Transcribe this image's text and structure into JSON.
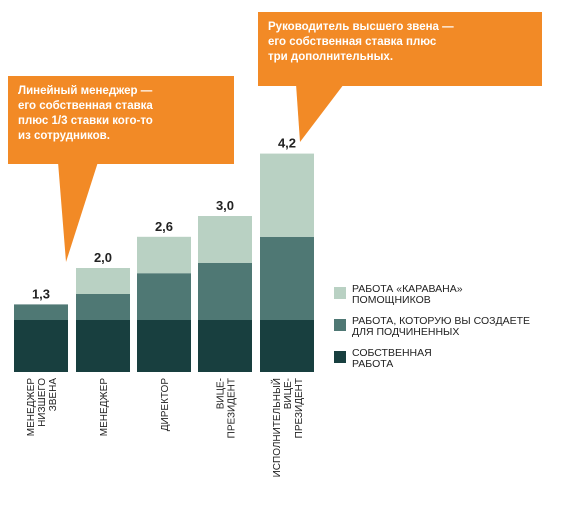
{
  "colors": {
    "own": "#183f3f",
    "subordinates": "#4f7874",
    "caravan": "#b9d1c3",
    "callout": "#f28a26"
  },
  "callouts": {
    "first": "Линейный менеджер —\nего собственная ставка\nплюс 1/3 ставки кого-то\nиз сотрудников.",
    "second": "Руководитель высшего звена —\nего собственная ставка плюс\nтри дополнительных."
  },
  "chart_data": {
    "type": "bar",
    "stacked": true,
    "categories": [
      "МЕНЕДЖЕР\nНИЗШЕГО\nЗВЕНА",
      "МЕНЕДЖЕР",
      "ДИРЕКТОР",
      "ВИЦЕ-\nПРЕЗИДЕНТ",
      "ИСПОЛНИТЕЛЬНЫЙ\nВИЦЕ-\nПРЕЗИДЕНТ"
    ],
    "totals": [
      "1,3",
      "2,0",
      "2,6",
      "3,0",
      "4,2"
    ],
    "series": [
      {
        "name": "СОБСТВЕННАЯ РАБОТА",
        "values": [
          1.0,
          1.0,
          1.0,
          1.0,
          1.0
        ],
        "color": "#183f3f"
      },
      {
        "name": "РАБОТА, КОТОРУЮ ВЫ СОЗДАЕТЕ ДЛЯ ПОДЧИНЕННЫХ",
        "values": [
          0.3,
          0.5,
          0.9,
          1.1,
          1.6
        ],
        "color": "#4f7874"
      },
      {
        "name": "РАБОТА «КАРАВАНА» ПОМОЩНИКОВ",
        "values": [
          0.0,
          0.5,
          0.7,
          0.9,
          1.6
        ],
        "color": "#b9d1c3"
      }
    ],
    "legend": [
      {
        "label": "РАБОТА «КАРАВАНА»\nПОМОЩНИКОВ",
        "color": "#b9d1c3"
      },
      {
        "label": "РАБОТА, КОТОРУЮ ВЫ СОЗДАЕТЕ\nДЛЯ ПОДЧИНЕННЫХ",
        "color": "#4f7874"
      },
      {
        "label": "СОБСТВЕННАЯ\nРАБОТА",
        "color": "#183f3f"
      }
    ],
    "ylim": [
      0,
      4.2
    ],
    "grid": false,
    "legend_position": "right"
  }
}
